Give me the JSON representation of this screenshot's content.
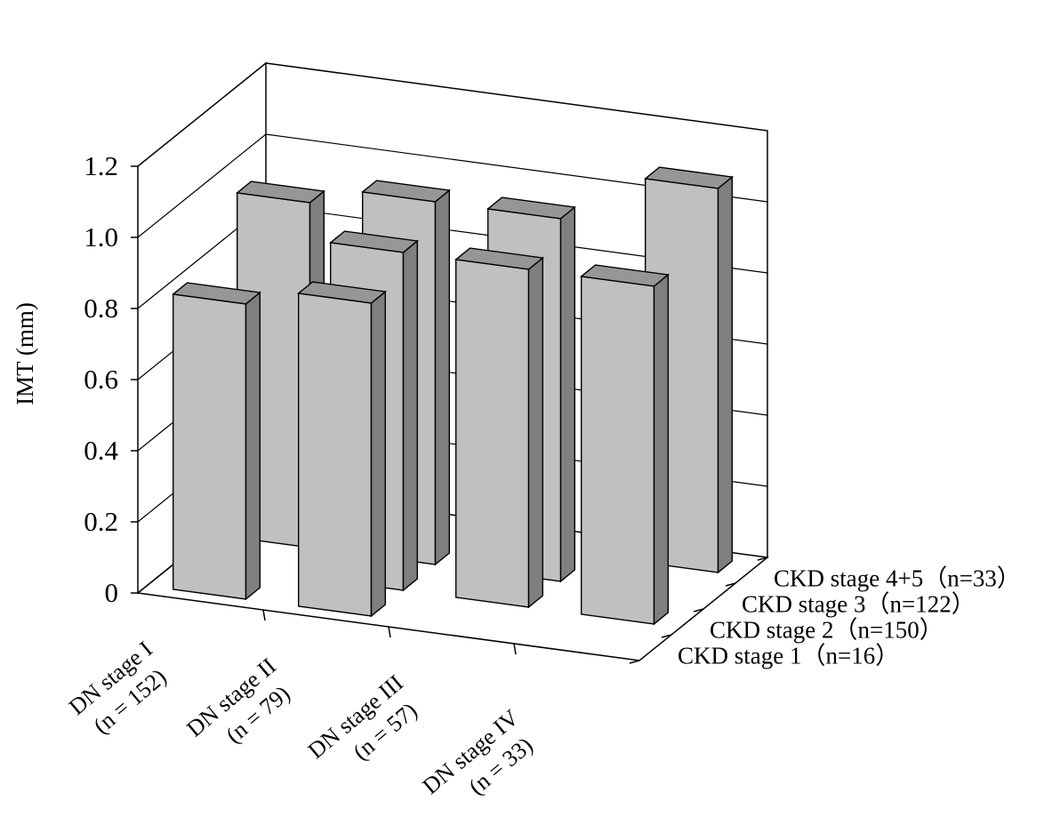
{
  "chart_data": {
    "type": "bar",
    "subtype": "3d-grouped-bar",
    "title": "",
    "ylabel": "IMT (mm)",
    "xlabel": "",
    "ylim": [
      0,
      1.2
    ],
    "yticks": [
      "0",
      "0.2",
      "0.4",
      "0.6",
      "0.8",
      "1.0",
      "1.2"
    ],
    "grid": true,
    "categories": [
      {
        "line1": "DN stage I",
        "line2": "(n = 152)"
      },
      {
        "line1": "DN stage II",
        "line2": "(n = 79)"
      },
      {
        "line1": "DN stage III",
        "line2": "(n = 57)"
      },
      {
        "line1": "DN stage IV",
        "line2": "(n = 33)"
      }
    ],
    "series": [
      {
        "name": "CKD stage 1（n=16）",
        "values": [
          0.83,
          0.88,
          null,
          null
        ]
      },
      {
        "name": "CKD stage 2（n=150）",
        "values": [
          null,
          0.95,
          0.95,
          0.95
        ]
      },
      {
        "name": "CKD stage 3（n=122）",
        "values": [
          0.97,
          1.02,
          1.02,
          null
        ]
      },
      {
        "name": "CKD stage 4+5（n=33）",
        "values": [
          null,
          null,
          null,
          1.08
        ]
      }
    ],
    "bar_color": "#c0c0c0",
    "bar_side_color": "#7f7f7f",
    "bar_top_color": "#969696"
  }
}
